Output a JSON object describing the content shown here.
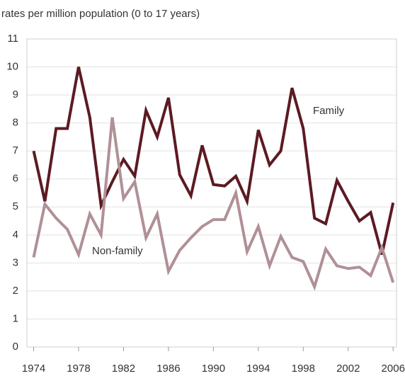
{
  "chart_data": {
    "type": "line",
    "y_label": "rates per million population (0 to 17 years)",
    "x": [
      1974,
      1975,
      1976,
      1977,
      1978,
      1979,
      1980,
      1981,
      1982,
      1983,
      1984,
      1985,
      1986,
      1987,
      1988,
      1989,
      1990,
      1991,
      1992,
      1993,
      1994,
      1995,
      1996,
      1997,
      1998,
      1999,
      2000,
      2001,
      2002,
      2003,
      2004,
      2005,
      2006
    ],
    "series": [
      {
        "name": "Family",
        "color": "#5c1a22",
        "values": [
          7.0,
          5.2,
          7.8,
          7.8,
          10.0,
          8.2,
          5.05,
          5.9,
          6.7,
          6.1,
          8.45,
          7.5,
          8.9,
          6.15,
          5.4,
          7.2,
          5.8,
          5.75,
          6.1,
          5.2,
          7.75,
          6.5,
          7.0,
          9.25,
          7.8,
          4.6,
          4.4,
          5.95,
          5.2,
          4.5,
          4.8,
          3.3,
          5.15
        ]
      },
      {
        "name": "Non-family",
        "color": "#b09096",
        "values": [
          3.2,
          5.1,
          4.6,
          4.2,
          3.3,
          4.75,
          4.0,
          8.2,
          5.3,
          5.9,
          3.9,
          4.75,
          2.7,
          3.45,
          3.9,
          4.3,
          4.55,
          4.55,
          5.5,
          3.4,
          4.3,
          2.9,
          3.95,
          3.2,
          3.05,
          2.15,
          3.5,
          2.9,
          2.8,
          2.85,
          2.55,
          3.55,
          2.3
        ]
      }
    ],
    "xlim": [
      1973.4,
      2006.3
    ],
    "xticks": [
      1974,
      1978,
      1982,
      1986,
      1990,
      1994,
      1998,
      2002,
      2006
    ],
    "ylim": [
      0,
      11
    ],
    "yticks": [
      0,
      1,
      2,
      3,
      4,
      5,
      6,
      7,
      8,
      9,
      10,
      11
    ],
    "grid": true
  }
}
